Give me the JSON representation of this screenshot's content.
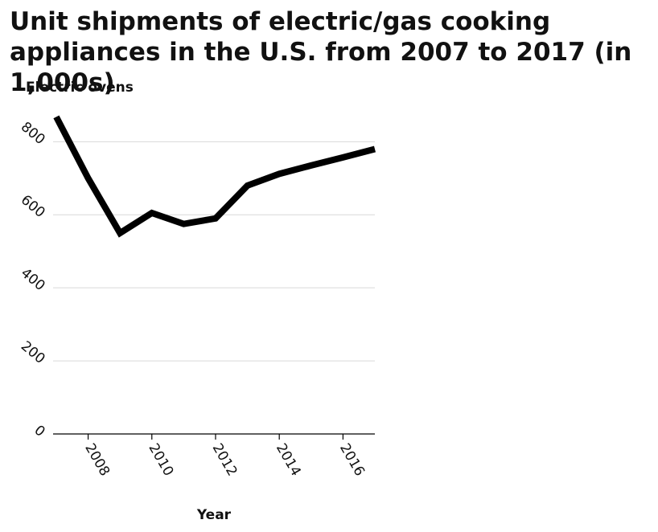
{
  "chart_data": {
    "type": "line",
    "title": "Unit shipments of electric/gas cooking appliances in the U.S. from 2007 to 2017 (in 1,000s)",
    "xlabel": "Year",
    "ylabel": "Electric ovens",
    "x": [
      2007,
      2008,
      2009,
      2010,
      2011,
      2012,
      2013,
      2014,
      2015,
      2016,
      2017
    ],
    "series": [
      {
        "values": [
          868,
          700,
          550,
          605,
          575,
          590,
          680,
          712,
          735,
          757,
          780
        ]
      }
    ],
    "xlim": [
      2006.9,
      2017
    ],
    "ylim": [
      0,
      880
    ],
    "x_ticks": [
      2008,
      2010,
      2012,
      2014,
      2016
    ],
    "x_tick_labels": [
      "2008",
      "2010",
      "2012",
      "2014",
      "2016"
    ],
    "y_ticks": [
      0,
      200,
      400,
      600,
      800
    ],
    "y_tick_labels": [
      "0",
      "200",
      "400",
      "600",
      "800"
    ],
    "grid": "horizontal",
    "legend": "none",
    "line_color": "#000000",
    "grid_color": "#d9d9d9"
  }
}
